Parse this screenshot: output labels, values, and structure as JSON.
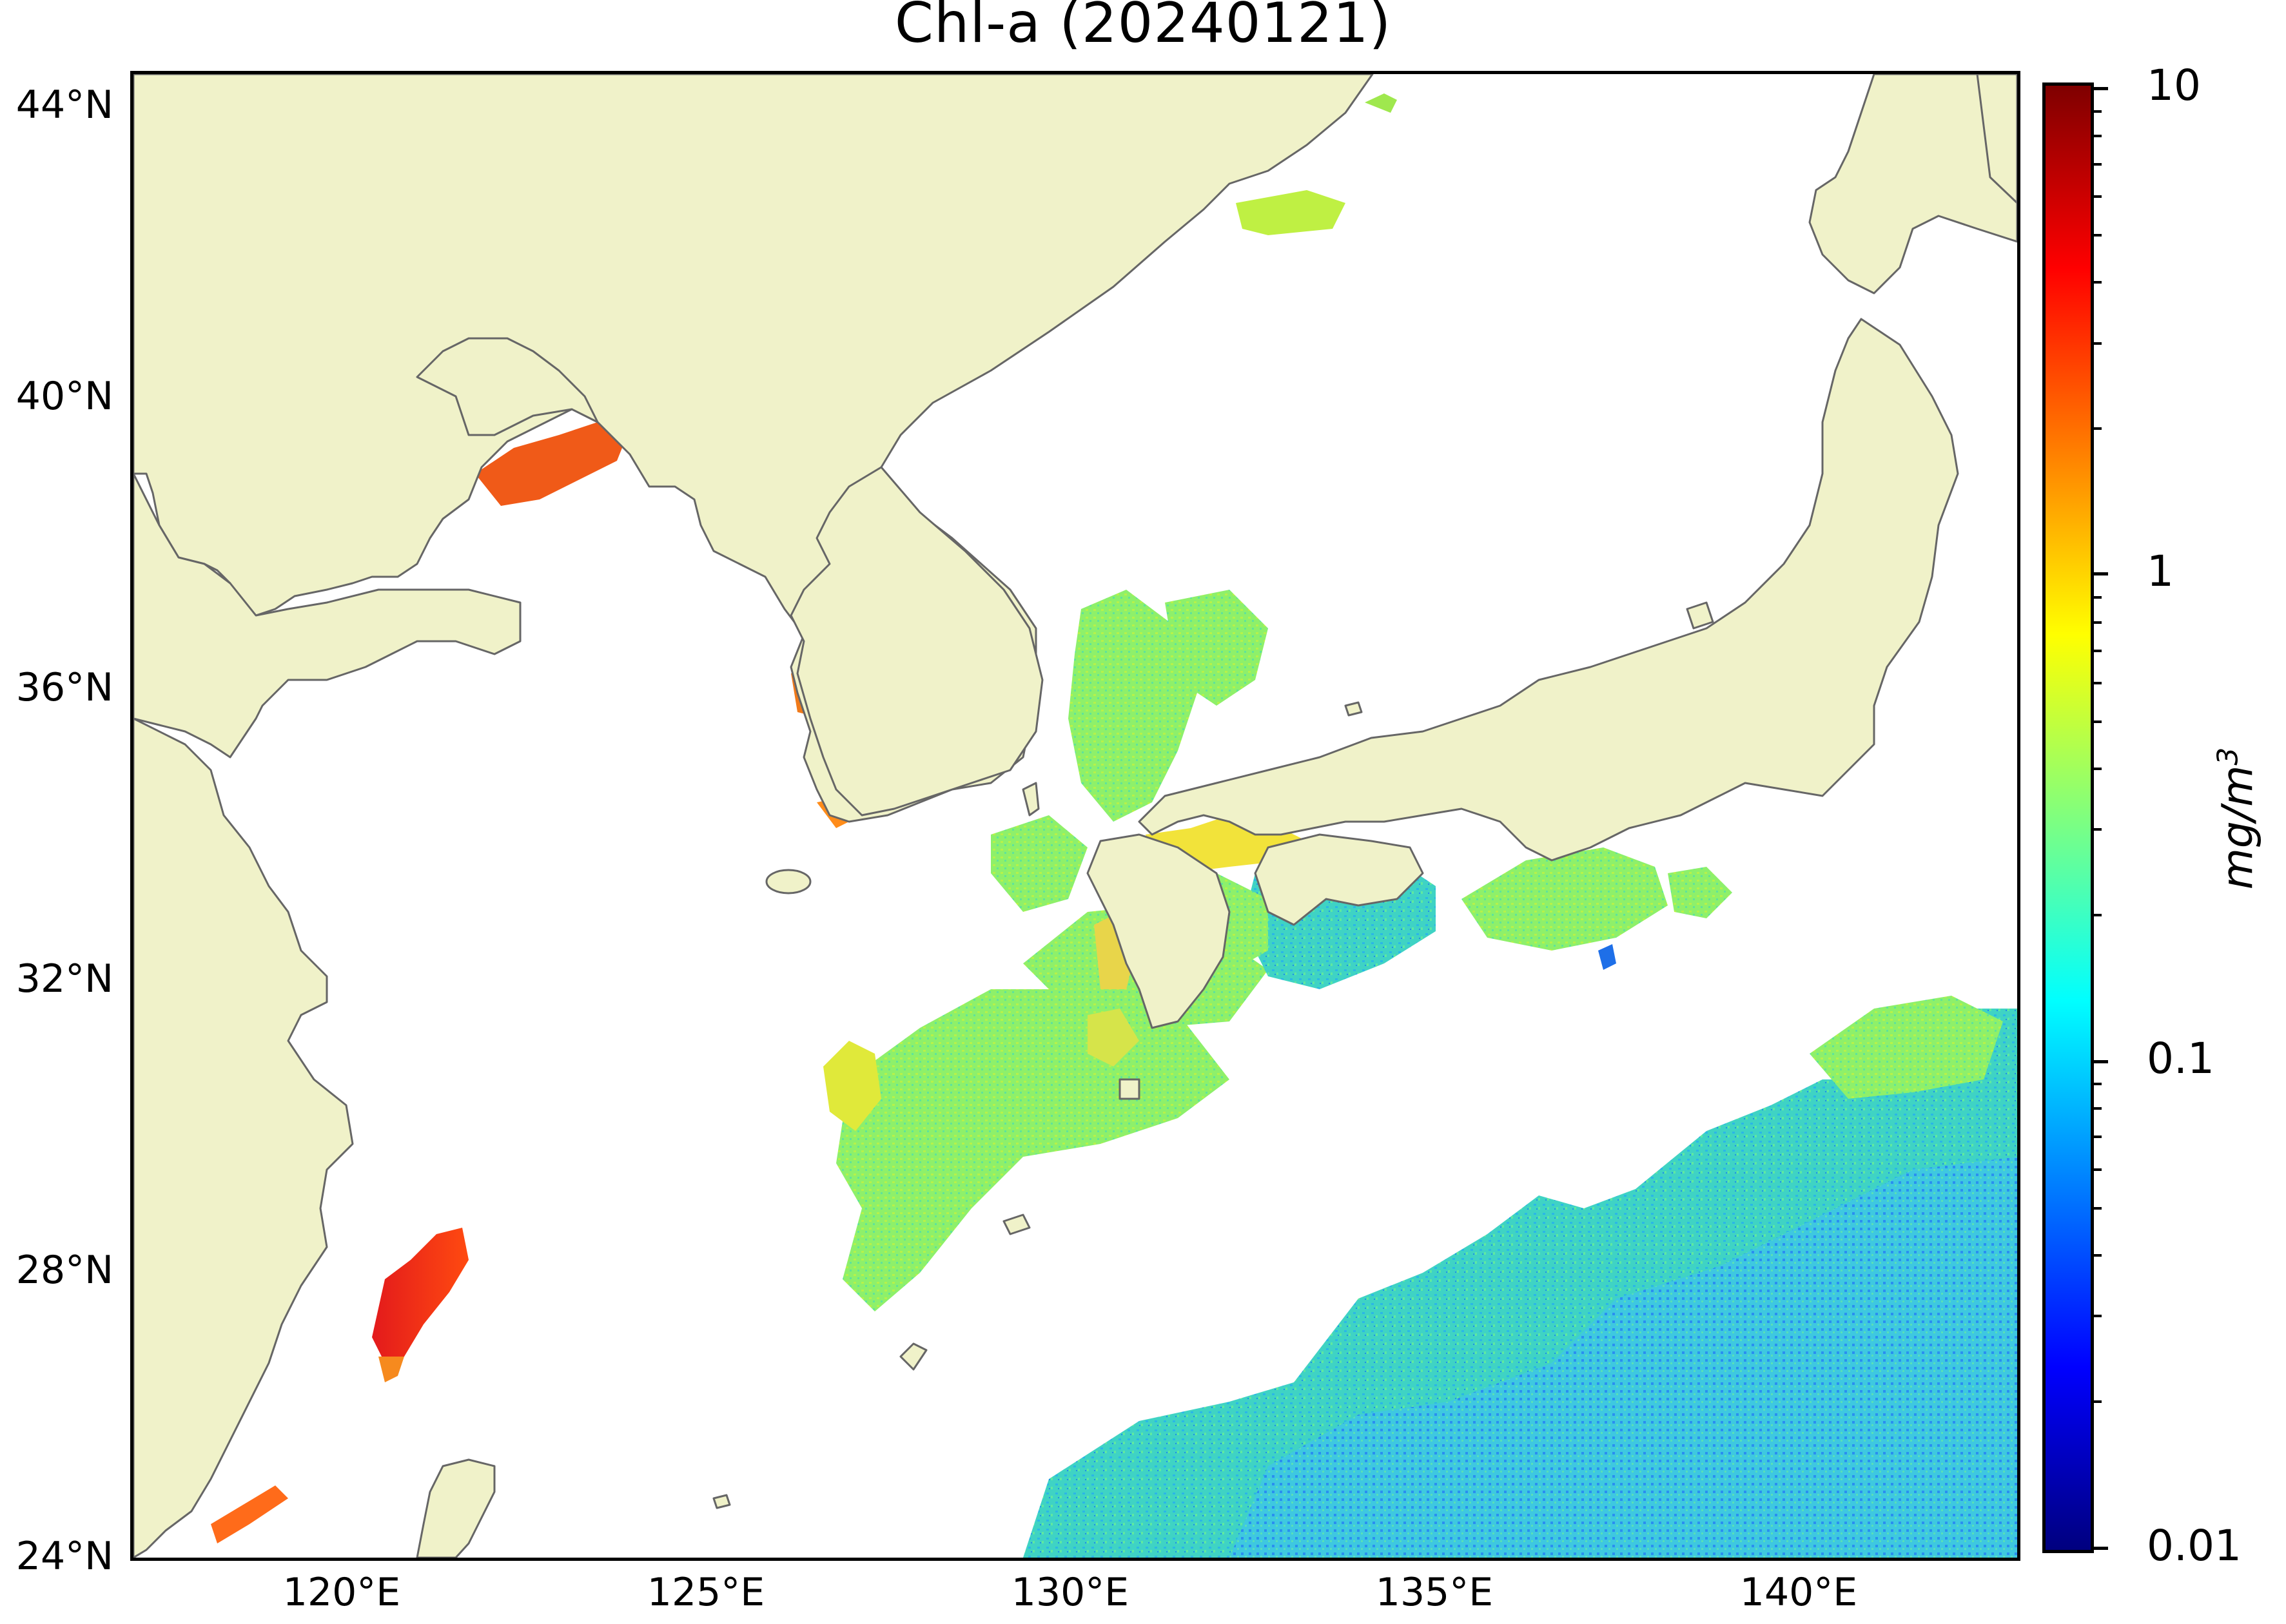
{
  "title": "Chl-a (20240121)",
  "map": {
    "extent": {
      "lon": [
        117,
        143
      ],
      "lat": [
        24,
        44.5
      ]
    },
    "land_color": "#f0f2c9",
    "ocean_nodata_color": "#ffffff",
    "coastline_color": "#666666"
  },
  "axes": {
    "lat_ticks": [
      {
        "label": "44°N",
        "value": 44
      },
      {
        "label": "40°N",
        "value": 40
      },
      {
        "label": "36°N",
        "value": 36
      },
      {
        "label": "32°N",
        "value": 32
      },
      {
        "label": "28°N",
        "value": 28
      },
      {
        "label": "24°N",
        "value": 24
      }
    ],
    "lon_ticks": [
      {
        "label": "120°E",
        "value": 120
      },
      {
        "label": "125°E",
        "value": 125
      },
      {
        "label": "130°E",
        "value": 130
      },
      {
        "label": "135°E",
        "value": 135
      },
      {
        "label": "140°E",
        "value": 140
      }
    ]
  },
  "colorbar": {
    "scale": "log",
    "range": [
      0.01,
      10
    ],
    "colormap": "jet",
    "ticks": [
      {
        "label": "10",
        "value": 10
      },
      {
        "label": "1",
        "value": 1
      },
      {
        "label": "0.1",
        "value": 0.1
      },
      {
        "label": "0.01",
        "value": 0.01
      }
    ],
    "unit": "mg/m3",
    "stops": [
      "#00007f",
      "#0000ff",
      "#007fff",
      "#00ffff",
      "#7fff7f",
      "#ffff00",
      "#ff7f00",
      "#ff0000",
      "#7f0000"
    ]
  }
}
